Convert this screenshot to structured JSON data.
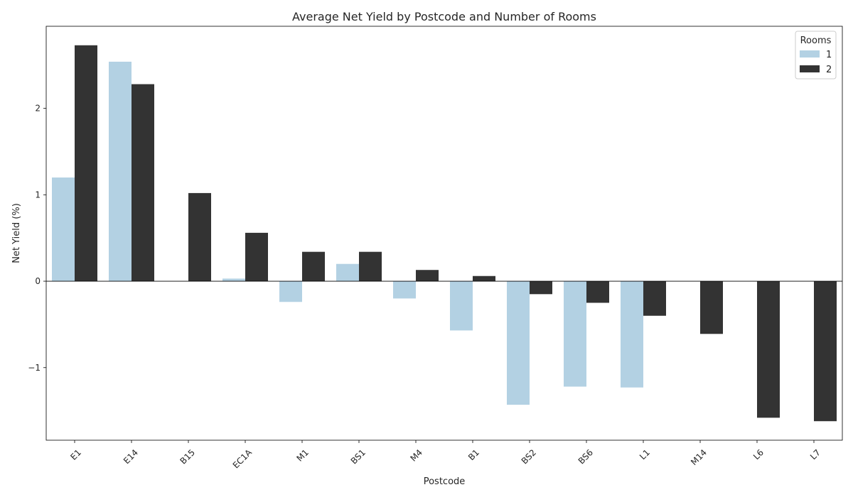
{
  "chart_data": {
    "type": "bar",
    "title": "Average Net Yield by Postcode and Number of Rooms",
    "xlabel": "Postcode",
    "ylabel": "Net Yield (%)",
    "categories": [
      "E1",
      "E14",
      "B15",
      "EC1A",
      "M1",
      "BS1",
      "M4",
      "B1",
      "BS2",
      "BS6",
      "L1",
      "M14",
      "L6",
      "L7"
    ],
    "series": [
      {
        "name": "1",
        "color": "#b3d1e3",
        "values": [
          1.2,
          2.54,
          null,
          0.03,
          -0.24,
          0.2,
          -0.2,
          -0.57,
          -1.43,
          -1.22,
          -1.23,
          null,
          null,
          null
        ]
      },
      {
        "name": "2",
        "color": "#333333",
        "values": [
          2.73,
          2.28,
          1.02,
          0.56,
          0.34,
          0.34,
          0.13,
          0.06,
          -0.15,
          -0.25,
          -0.4,
          -0.61,
          -1.58,
          -1.62
        ]
      }
    ],
    "ylim": [
      -1.84,
      2.95
    ],
    "yticks": [
      -1,
      0,
      1,
      2
    ],
    "ytick_labels": [
      "−1",
      "0",
      "1",
      "2"
    ],
    "grid": false,
    "legend": {
      "title": "Rooms",
      "placement": "top-right",
      "entries": [
        "1",
        "2"
      ]
    }
  }
}
